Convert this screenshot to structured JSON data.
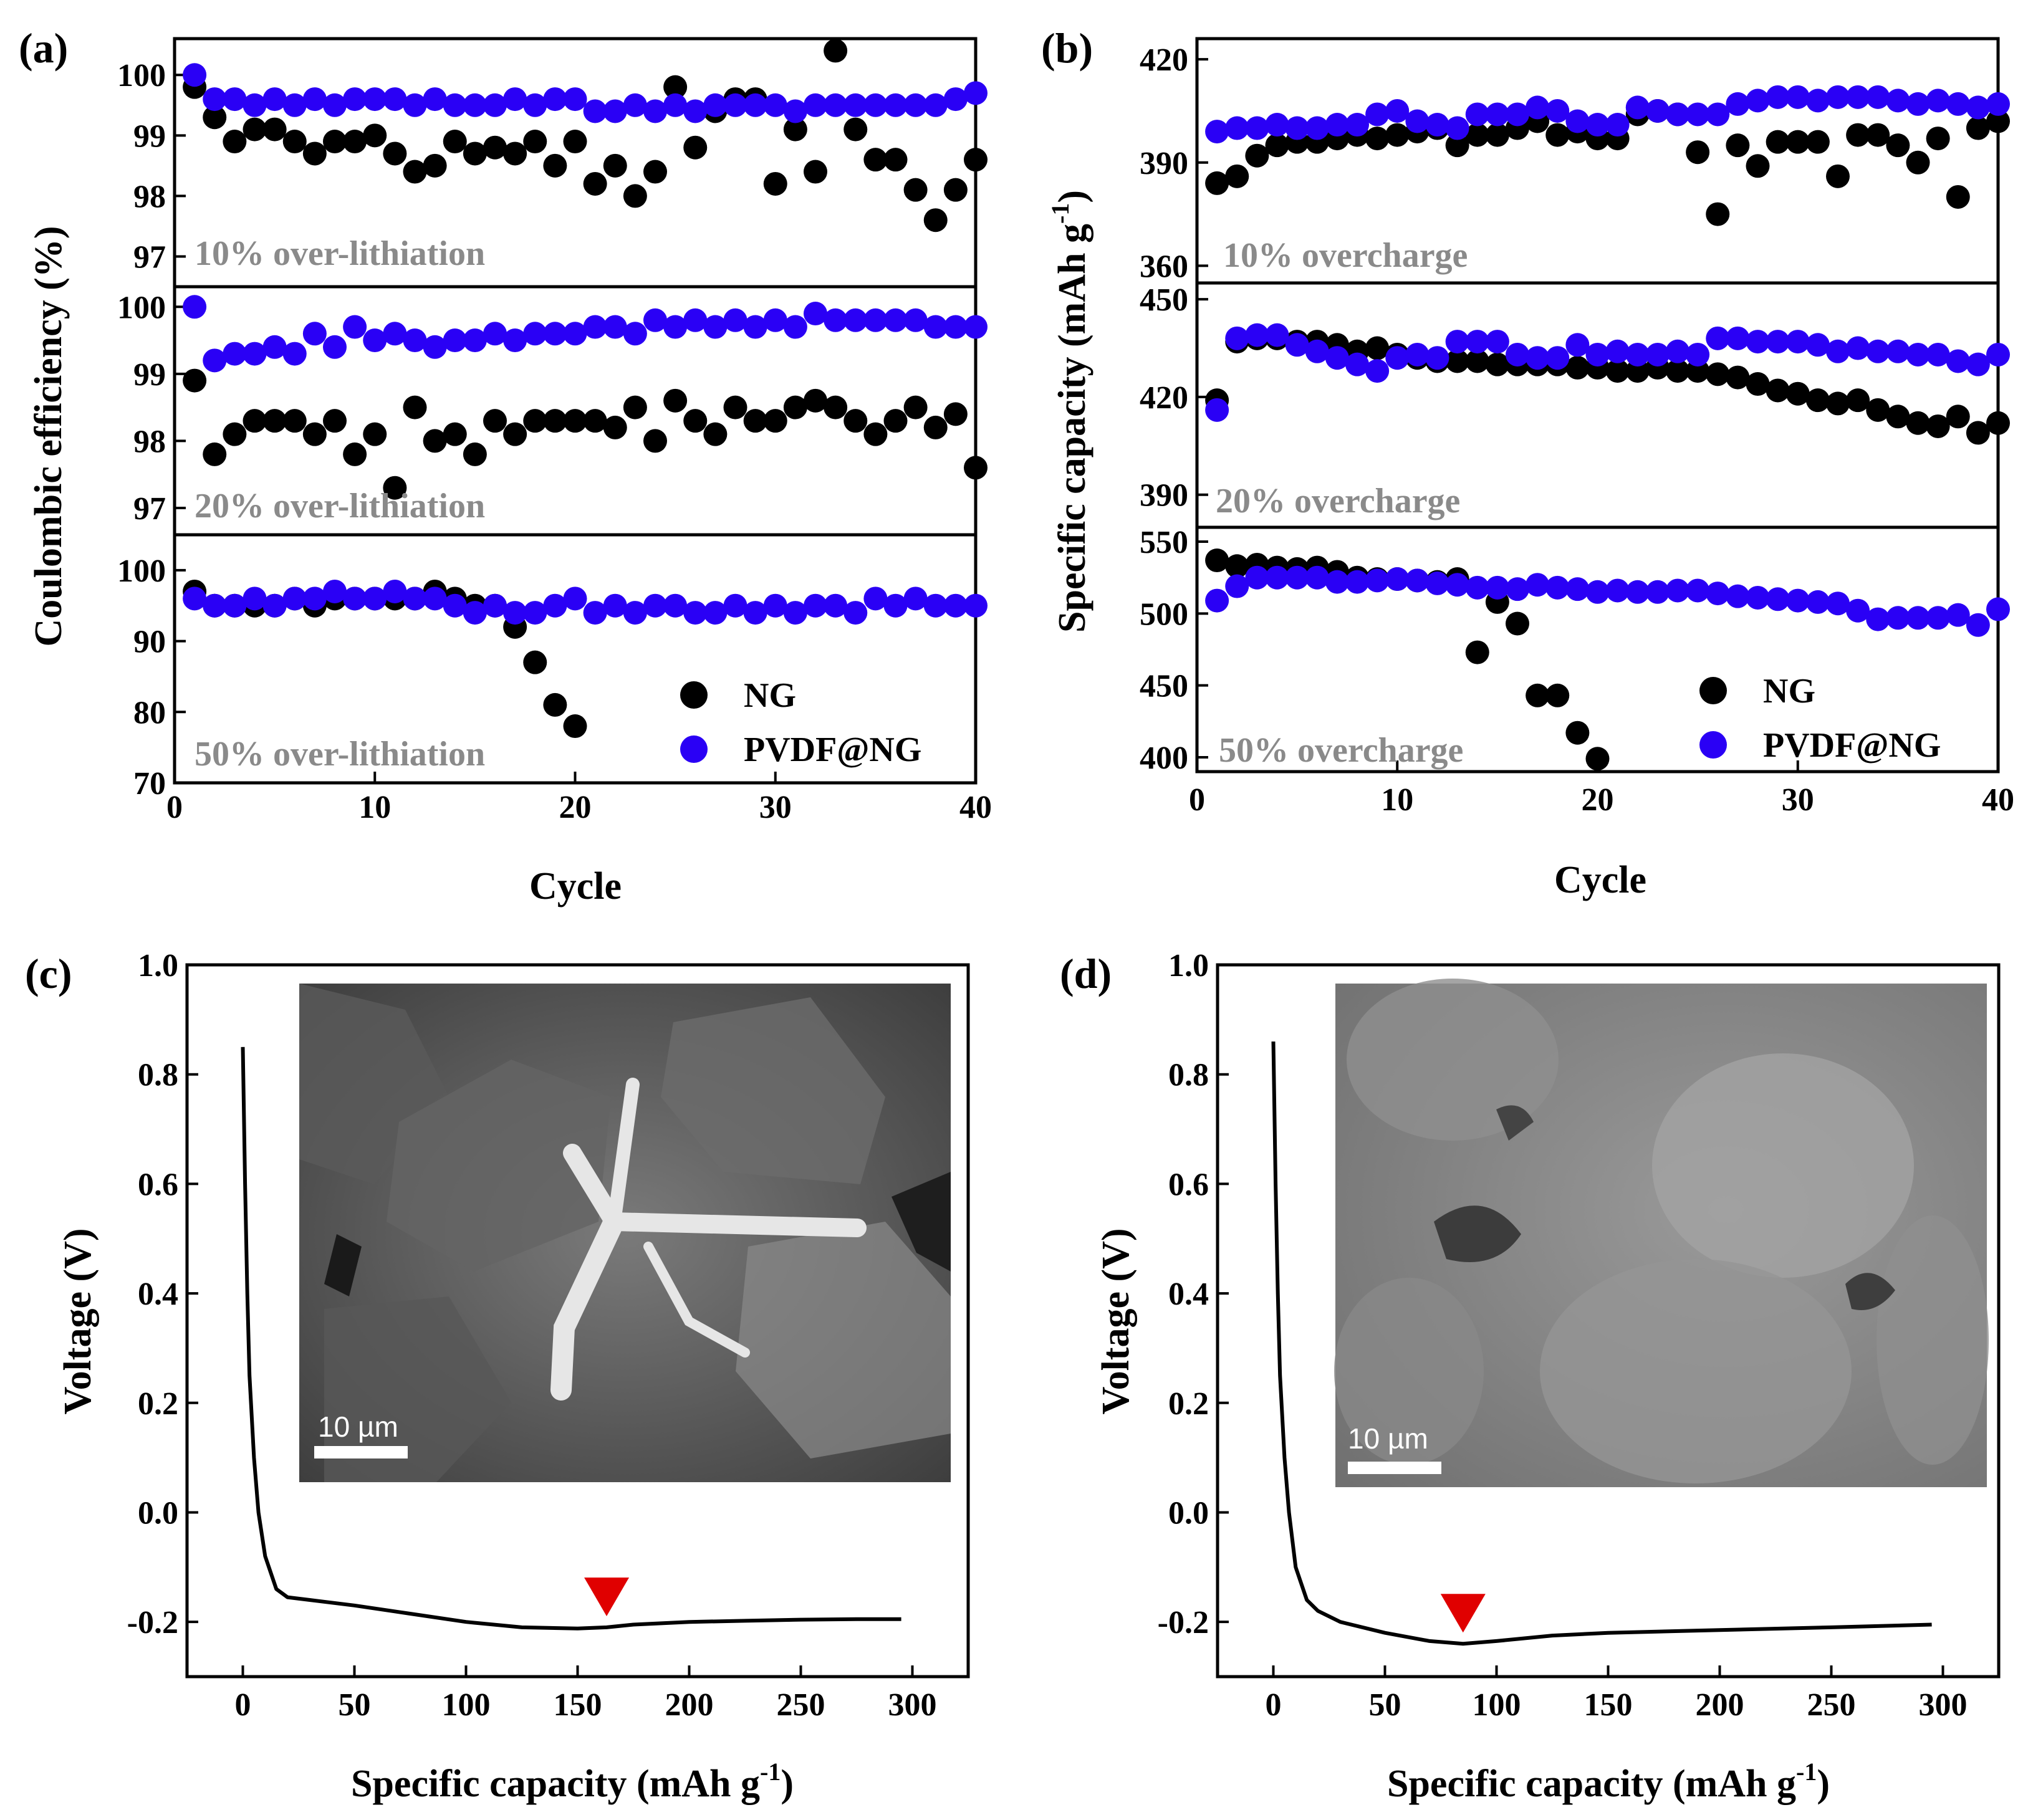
{
  "chart_data": [
    {
      "id": "a",
      "panel_label": "(a)",
      "type": "scatter",
      "xlabel": "Cycle",
      "ylabel": "Coulombic efficiency (%)",
      "xlim": [
        0,
        40
      ],
      "x_ticks": [
        0,
        10,
        20,
        30,
        40
      ],
      "series_names": [
        "NG",
        "PVDF@NG"
      ],
      "series_colors": [
        "#000000",
        "#2a00f5"
      ],
      "subplots": [
        {
          "label": "10% over-lithiation",
          "ylim": [
            96.5,
            100.6
          ],
          "y_ticks": [
            97,
            98,
            99,
            100
          ],
          "ng": [
            99.8,
            99.3,
            98.9,
            99.1,
            99.1,
            98.9,
            98.7,
            98.9,
            98.9,
            99.0,
            98.7,
            98.4,
            98.5,
            98.9,
            98.7,
            98.8,
            98.7,
            98.9,
            98.5,
            98.9,
            98.2,
            98.5,
            98.0,
            98.4,
            99.8,
            98.8,
            99.4,
            99.6,
            99.6,
            98.2,
            99.1,
            98.4,
            100.4,
            99.1,
            98.6,
            98.6,
            98.1,
            97.6,
            98.1,
            98.6
          ],
          "pvdf": [
            100.0,
            99.6,
            99.6,
            99.5,
            99.6,
            99.5,
            99.6,
            99.5,
            99.6,
            99.6,
            99.6,
            99.5,
            99.6,
            99.5,
            99.5,
            99.5,
            99.6,
            99.5,
            99.6,
            99.6,
            99.4,
            99.4,
            99.5,
            99.4,
            99.5,
            99.4,
            99.5,
            99.5,
            99.5,
            99.5,
            99.4,
            99.5,
            99.5,
            99.5,
            99.5,
            99.5,
            99.5,
            99.5,
            99.6,
            99.7
          ]
        },
        {
          "label": "20% over-lithiation",
          "ylim": [
            96.6,
            100.3
          ],
          "y_ticks": [
            97,
            98,
            99,
            100
          ],
          "ng": [
            98.9,
            97.8,
            98.1,
            98.3,
            98.3,
            98.3,
            98.1,
            98.3,
            97.8,
            98.1,
            97.3,
            98.5,
            98.0,
            98.1,
            97.8,
            98.3,
            98.1,
            98.3,
            98.3,
            98.3,
            98.3,
            98.2,
            98.5,
            98.0,
            98.6,
            98.3,
            98.1,
            98.5,
            98.3,
            98.3,
            98.5,
            98.6,
            98.5,
            98.3,
            98.1,
            98.3,
            98.5,
            98.2,
            98.4,
            97.6
          ],
          "pvdf": [
            100.0,
            99.2,
            99.3,
            99.3,
            99.4,
            99.3,
            99.6,
            99.4,
            99.7,
            99.5,
            99.6,
            99.5,
            99.4,
            99.5,
            99.5,
            99.6,
            99.5,
            99.6,
            99.6,
            99.6,
            99.7,
            99.7,
            99.6,
            99.8,
            99.7,
            99.8,
            99.7,
            99.8,
            99.7,
            99.8,
            99.7,
            99.9,
            99.8,
            99.8,
            99.8,
            99.8,
            99.8,
            99.7,
            99.7,
            99.7
          ]
        },
        {
          "label": "50% over-lithiation",
          "ylim": [
            70,
            105
          ],
          "y_ticks": [
            70,
            80,
            90,
            100
          ],
          "ng": [
            97,
            95,
            95,
            95,
            95,
            96,
            95,
            96,
            96,
            96,
            96,
            96,
            97,
            96,
            95,
            95,
            92,
            87,
            81,
            78
          ],
          "pvdf": [
            96,
            95,
            95,
            96,
            95,
            96,
            96,
            97,
            96,
            96,
            97,
            96,
            96,
            95,
            94,
            95,
            94,
            94,
            95,
            96,
            94,
            95,
            94,
            95,
            95,
            94,
            94,
            95,
            94,
            95,
            94,
            95,
            95,
            94,
            96,
            95,
            96,
            95,
            95,
            95
          ]
        }
      ],
      "legend": [
        "NG",
        "PVDF@NG"
      ]
    },
    {
      "id": "b",
      "panel_label": "(b)",
      "type": "scatter",
      "xlabel": "Cycle",
      "ylabel_main": "Specific capacity (mAh g",
      "ylabel_sup": "-1",
      "ylabel_close": ")",
      "xlim": [
        0,
        40
      ],
      "x_ticks": [
        0,
        10,
        20,
        30,
        40
      ],
      "series_names": [
        "NG",
        "PVDF@NG"
      ],
      "series_colors": [
        "#000000",
        "#2a00f5"
      ],
      "subplots": [
        {
          "label": "10% overcharge",
          "ylim": [
            355,
            426
          ],
          "y_ticks": [
            360,
            390,
            420
          ],
          "ng": [
            384,
            386,
            392,
            395,
            396,
            396,
            397,
            398,
            397,
            398,
            399,
            400,
            395,
            398,
            398,
            400,
            402,
            398,
            399,
            397,
            397,
            404,
            405,
            404,
            393,
            375,
            395,
            389,
            396,
            396,
            396,
            386,
            398,
            398,
            395,
            390,
            397,
            380,
            400,
            402
          ],
          "pvdf": [
            399,
            400,
            400,
            401,
            400,
            400,
            401,
            401,
            404,
            405,
            402,
            401,
            400,
            404,
            404,
            404,
            406,
            405,
            402,
            401,
            401,
            406,
            405,
            404,
            404,
            404,
            407,
            408,
            409,
            409,
            408,
            409,
            409,
            409,
            408,
            407,
            408,
            407,
            406,
            407
          ]
        },
        {
          "label": "20% overcharge",
          "ylim": [
            380,
            455
          ],
          "y_ticks": [
            390,
            420,
            450
          ],
          "ng": [
            419,
            437,
            438,
            438,
            437,
            437,
            436,
            434,
            435,
            433,
            432,
            431,
            431,
            431,
            430,
            430,
            430,
            430,
            429,
            429,
            428,
            428,
            429,
            428,
            428,
            427,
            426,
            424,
            422,
            421,
            419,
            418,
            419,
            416,
            414,
            412,
            411,
            414,
            409,
            412
          ],
          "pvdf": [
            416,
            438,
            439,
            439,
            436,
            434,
            432,
            430,
            428,
            432,
            433,
            432,
            437,
            437,
            437,
            433,
            432,
            432,
            436,
            433,
            434,
            433,
            433,
            434,
            433,
            438,
            438,
            437,
            437,
            437,
            436,
            434,
            435,
            434,
            434,
            433,
            433,
            431,
            430,
            433
          ]
        },
        {
          "label": "50% overcharge",
          "ylim": [
            390,
            560
          ],
          "y_ticks": [
            400,
            450,
            500,
            550
          ],
          "ng": [
            537,
            533,
            534,
            532,
            531,
            532,
            529,
            525,
            524,
            524,
            523,
            522,
            524,
            473,
            508,
            493,
            443,
            443,
            417,
            399
          ],
          "pvdf": [
            509,
            519,
            525,
            525,
            525,
            525,
            522,
            522,
            523,
            524,
            523,
            521,
            520,
            518,
            518,
            517,
            520,
            518,
            517,
            515,
            516,
            515,
            515,
            516,
            516,
            514,
            512,
            511,
            510,
            509,
            508,
            507,
            502,
            496,
            497,
            497,
            497,
            499,
            492,
            503
          ]
        }
      ],
      "legend": [
        "NG",
        "PVDF@NG"
      ]
    },
    {
      "id": "c",
      "panel_label": "(c)",
      "type": "line",
      "xlabel_main": "Specific capacity (mAh g",
      "xlabel_sup": "-1",
      "xlabel_close": ")",
      "ylabel": "Voltage (V)",
      "xlim": [
        -25,
        325
      ],
      "ylim": [
        -0.3,
        1.0
      ],
      "x_ticks": [
        0,
        50,
        100,
        150,
        200,
        250,
        300
      ],
      "y_ticks": [
        -0.2,
        0.0,
        0.2,
        0.4,
        0.6,
        0.8,
        1.0
      ],
      "y_tick_labels": [
        "-0.2",
        "0.0",
        "0.2",
        "0.4",
        "0.6",
        "0.8",
        "1.0"
      ],
      "x": [
        0,
        1,
        2,
        3,
        5,
        7,
        10,
        15,
        20,
        30,
        50,
        75,
        100,
        125,
        150,
        163,
        175,
        200,
        225,
        250,
        275,
        295
      ],
      "y": [
        0.85,
        0.6,
        0.4,
        0.25,
        0.1,
        0.0,
        -0.08,
        -0.14,
        -0.155,
        -0.16,
        -0.17,
        -0.185,
        -0.2,
        -0.21,
        -0.212,
        -0.21,
        -0.205,
        -0.2,
        -0.198,
        -0.196,
        -0.195,
        -0.195
      ],
      "marker_x": 163,
      "scale_bar": "10 µm",
      "color": "#000000",
      "marker_color": "#e00000"
    },
    {
      "id": "d",
      "panel_label": "(d)",
      "type": "line",
      "xlabel_main": "Specific capacity (mAh g",
      "xlabel_sup": "-1",
      "xlabel_close": ")",
      "ylabel": "Voltage (V)",
      "xlim": [
        -25,
        325
      ],
      "ylim": [
        -0.3,
        1.0
      ],
      "x_ticks": [
        0,
        50,
        100,
        150,
        200,
        250,
        300
      ],
      "y_ticks": [
        -0.2,
        0.0,
        0.2,
        0.4,
        0.6,
        0.8,
        1.0
      ],
      "y_tick_labels": [
        "-0.2",
        "0.0",
        "0.2",
        "0.4",
        "0.6",
        "0.8",
        "1.0"
      ],
      "x": [
        0,
        1,
        2,
        3,
        5,
        7,
        10,
        15,
        20,
        30,
        50,
        70,
        85,
        100,
        125,
        150,
        200,
        250,
        295
      ],
      "y": [
        0.86,
        0.6,
        0.4,
        0.25,
        0.1,
        0.0,
        -0.1,
        -0.16,
        -0.18,
        -0.2,
        -0.22,
        -0.235,
        -0.24,
        -0.235,
        -0.225,
        -0.22,
        -0.215,
        -0.21,
        -0.205
      ],
      "marker_x": 85,
      "scale_bar": "10 µm",
      "color": "#000000",
      "marker_color": "#e00000"
    }
  ]
}
